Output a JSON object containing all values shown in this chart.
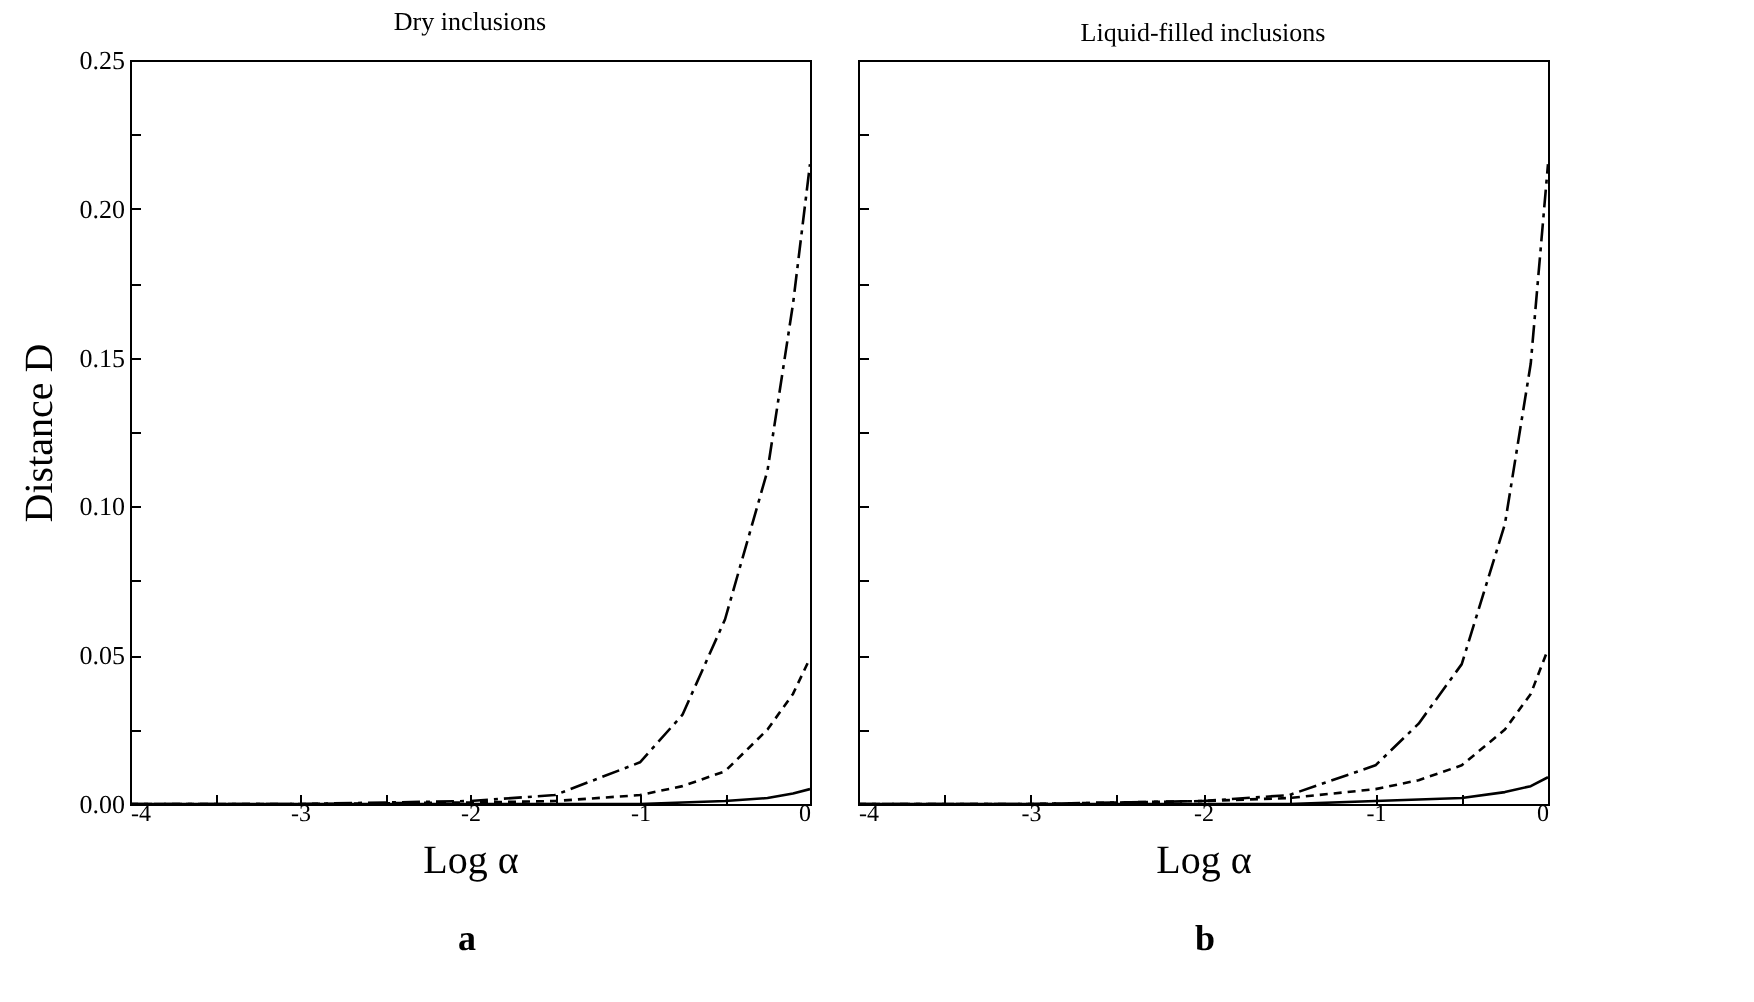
{
  "chart_data": [
    {
      "type": "line",
      "title": "Dry inclusions",
      "xlabel": "Log α",
      "ylabel": "Distance D",
      "annotations": [
        "a"
      ],
      "x": [
        -4,
        -3,
        -2,
        -1.5,
        -1,
        -0.75,
        -0.5,
        -0.25,
        -0.1,
        0
      ],
      "series": [
        {
          "color": "#000000",
          "line_style": "dashed",
          "values": [
            0,
            0,
            0.001,
            0.003,
            0.014,
            0.03,
            0.062,
            0.112,
            0.168,
            0.215
          ]
        },
        {
          "color": "#000000",
          "line_style": "dotted",
          "values": [
            0,
            0,
            0.0005,
            0.001,
            0.003,
            0.006,
            0.011,
            0.025,
            0.037,
            0.049
          ]
        },
        {
          "color": "#000000",
          "line_style": "solid",
          "values": [
            0,
            0,
            0,
            0,
            0,
            0.0005,
            0.001,
            0.002,
            0.0035,
            0.005
          ]
        }
      ],
      "xlim": [
        -4,
        0
      ],
      "xticks": [
        -4,
        {
          "value": -3.5,
          "label": null
        },
        -3,
        {
          "value": -2.5,
          "label": null
        },
        -2,
        {
          "value": -1.5,
          "label": null
        },
        -1,
        {
          "value": -0.5,
          "label": null
        },
        0
      ],
      "ylim": [
        0,
        0.25
      ],
      "yticks": [
        {
          "value": 0,
          "label": "0.00"
        },
        {
          "value": 0.025,
          "label": null
        },
        {
          "value": 0.05,
          "label": "0.05"
        },
        {
          "value": 0.075,
          "label": null
        },
        {
          "value": 0.1,
          "label": "0.10"
        },
        {
          "value": 0.125,
          "label": null
        },
        {
          "value": 0.15,
          "label": "0.15"
        },
        {
          "value": 0.175,
          "label": null
        },
        {
          "value": 0.2,
          "label": "0.20"
        },
        {
          "value": 0.225,
          "label": null
        },
        {
          "value": 0.25,
          "label": "0.25"
        }
      ],
      "grid": false,
      "marker": "none"
    },
    {
      "type": "line",
      "title": "Liquid-filled inclusions",
      "xlabel": "Log α",
      "annotations": [
        "b"
      ],
      "tick_labels": "x",
      "x": [
        -4,
        -3,
        -2,
        -1.5,
        -1,
        -0.75,
        -0.5,
        -0.25,
        -0.1,
        0
      ],
      "series": [
        {
          "color": "#000000",
          "line_style": "dashed",
          "values": [
            0,
            0,
            0.001,
            0.003,
            0.013,
            0.027,
            0.047,
            0.094,
            0.148,
            0.215
          ]
        },
        {
          "color": "#000000",
          "line_style": "dotted",
          "values": [
            0,
            0,
            0.001,
            0.002,
            0.005,
            0.008,
            0.013,
            0.025,
            0.037,
            0.052
          ]
        },
        {
          "color": "#000000",
          "line_style": "solid",
          "values": [
            0,
            0,
            0,
            0,
            0.001,
            0.0015,
            0.002,
            0.004,
            0.006,
            0.009
          ]
        }
      ],
      "xlim": [
        -4,
        0
      ],
      "xticks": [
        -4,
        {
          "value": -3.5,
          "label": null
        },
        -3,
        {
          "value": -2.5,
          "label": null
        },
        -2,
        {
          "value": -1.5,
          "label": null
        },
        -1,
        {
          "value": -0.5,
          "label": null
        },
        0
      ],
      "ylim": [
        0,
        0.25
      ],
      "yticks": [
        {
          "value": 0,
          "label": null
        },
        {
          "value": 0.025,
          "label": null
        },
        {
          "value": 0.05,
          "label": null
        },
        {
          "value": 0.075,
          "label": null
        },
        {
          "value": 0.1,
          "label": null
        },
        {
          "value": 0.125,
          "label": null
        },
        {
          "value": 0.15,
          "label": null
        },
        {
          "value": 0.175,
          "label": null
        },
        {
          "value": 0.2,
          "label": null
        },
        {
          "value": 0.225,
          "label": null
        },
        {
          "value": 0.25,
          "label": null
        }
      ],
      "grid": false,
      "marker": "none"
    }
  ]
}
